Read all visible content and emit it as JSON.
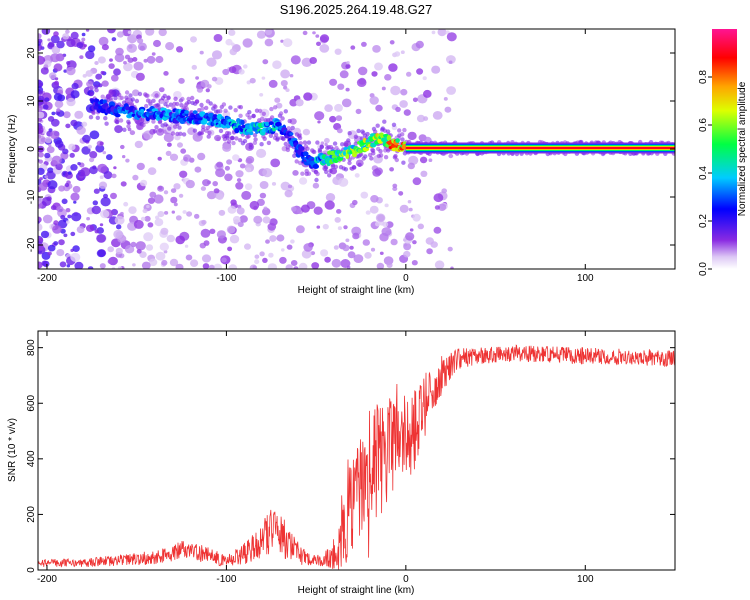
{
  "title": "S196.2025.264.19.48.G27",
  "chart_data": [
    {
      "type": "heatmap",
      "name": "spectrogram",
      "xlabel": "Height of straight line (km)",
      "ylabel": "Frequency (Hz)",
      "xlim": [
        -205,
        150
      ],
      "ylim": [
        -25,
        25
      ],
      "xticks": [
        -200,
        -100,
        0,
        100
      ],
      "yticks": [
        20,
        10,
        0,
        -10,
        -20
      ],
      "colorbar": {
        "label": "Normalized spectral amplitude",
        "range": [
          0,
          1
        ],
        "ticks": [
          0.0,
          0.2,
          0.4,
          0.6,
          0.8
        ],
        "tick_labels": [
          "0.0",
          "0.2",
          "0.4",
          "0.6",
          "0.8"
        ]
      },
      "ridge": {
        "height_km": [
          -175,
          -160,
          -145,
          -130,
          -115,
          -100,
          -90,
          -80,
          -72,
          -67,
          -62,
          -57,
          -52,
          -48,
          -44,
          -40,
          -35,
          -30,
          -25,
          -20,
          -15,
          -10,
          -5,
          0,
          10,
          20,
          40,
          60,
          80,
          100,
          120,
          150
        ],
        "frequency_hz": [
          9.5,
          8.0,
          7.5,
          7.0,
          6.5,
          5.5,
          4.5,
          4.0,
          5.0,
          4.0,
          1.0,
          -1.5,
          -3.0,
          -2.5,
          -2.0,
          -1.5,
          -1.0,
          -0.5,
          0.5,
          1.5,
          2.5,
          1.5,
          0.8,
          0.3,
          0.2,
          0.2,
          0.2,
          0.2,
          0.2,
          0.2,
          0.2,
          0.2
        ],
        "amplitude": [
          0.25,
          0.3,
          0.35,
          0.35,
          0.35,
          0.4,
          0.4,
          0.45,
          0.45,
          0.3,
          0.3,
          0.3,
          0.35,
          0.4,
          0.5,
          0.55,
          0.6,
          0.6,
          0.6,
          0.65,
          0.7,
          0.75,
          0.8,
          0.85,
          0.9,
          0.9,
          0.9,
          0.9,
          0.9,
          0.9,
          0.9,
          0.9
        ]
      }
    },
    {
      "type": "line",
      "name": "snr",
      "xlabel": "Height of straight line (km)",
      "ylabel": "SNR (10 * v/v)",
      "xlim": [
        -205,
        150
      ],
      "ylim": [
        0,
        860
      ],
      "xticks": [
        -200,
        -100,
        0,
        100
      ],
      "yticks": [
        0,
        200,
        400,
        600,
        800
      ],
      "color": "#ee3333",
      "envelope": {
        "x": [
          -205,
          -180,
          -160,
          -140,
          -125,
          -110,
          -100,
          -90,
          -80,
          -75,
          -70,
          -65,
          -60,
          -55,
          -50,
          -45,
          -40,
          -35,
          -30,
          -25,
          -20,
          -15,
          -10,
          -5,
          0,
          5,
          10,
          15,
          20,
          25,
          30,
          40,
          60,
          80,
          100,
          120,
          150
        ],
        "y": [
          25,
          25,
          35,
          45,
          70,
          55,
          30,
          60,
          110,
          150,
          130,
          90,
          60,
          40,
          35,
          40,
          55,
          120,
          250,
          310,
          370,
          400,
          430,
          460,
          480,
          500,
          580,
          650,
          700,
          740,
          760,
          770,
          780,
          775,
          770,
          770,
          760
        ],
        "noise": [
          15,
          15,
          20,
          25,
          35,
          30,
          20,
          40,
          70,
          90,
          80,
          60,
          40,
          25,
          20,
          30,
          60,
          120,
          180,
          200,
          220,
          220,
          200,
          180,
          160,
          150,
          120,
          90,
          70,
          50,
          40,
          30,
          30,
          30,
          30,
          30,
          30
        ]
      }
    }
  ]
}
